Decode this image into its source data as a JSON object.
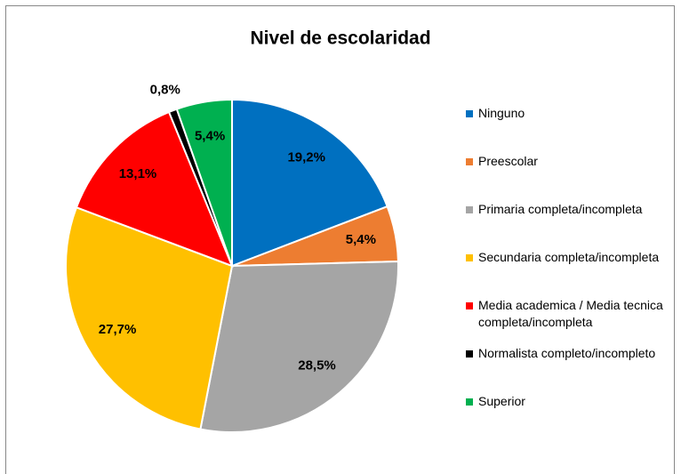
{
  "chart_data": {
    "type": "pie",
    "title": "Nivel de escolaridad",
    "categories": [
      "Ninguno",
      "Preescolar",
      "Primaria completa/incompleta",
      "Secundaria completa/incompleta",
      "Media academica / Media tecnica completa/incompleta",
      "Normalista completo/incompleto",
      "Superior"
    ],
    "values": [
      19.2,
      5.4,
      28.5,
      27.7,
      13.1,
      0.8,
      5.4
    ],
    "value_labels": [
      "19,2%",
      "5,4%",
      "28,5%",
      "27,7%",
      "13,1%",
      "0,8%",
      "5,4%"
    ],
    "colors": [
      "#0070c0",
      "#ed7d31",
      "#a5a5a5",
      "#ffc000",
      "#ff0000",
      "#000000",
      "#00b050"
    ],
    "legend": "right"
  }
}
